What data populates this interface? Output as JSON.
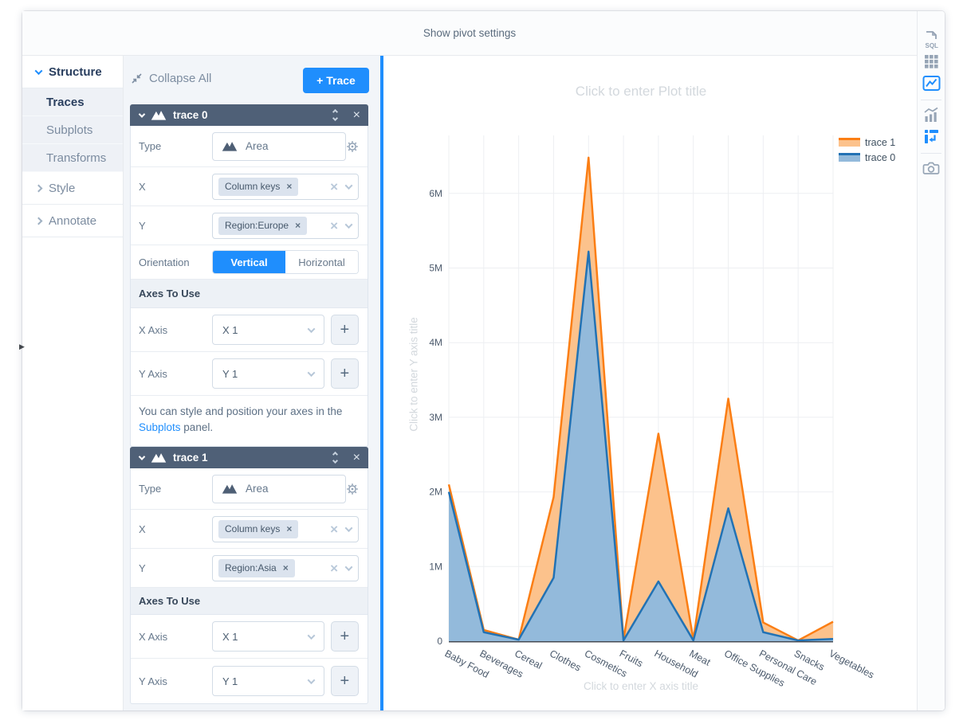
{
  "top_bar": {
    "label": "Show pivot settings"
  },
  "sidebar": {
    "structure_label": "Structure",
    "items": [
      {
        "label": "Traces",
        "active": true
      },
      {
        "label": "Subplots",
        "active": false
      },
      {
        "label": "Transforms",
        "active": false
      }
    ],
    "style_label": "Style",
    "annotate_label": "Annotate"
  },
  "editor": {
    "collapse_all": "Collapse All",
    "add_trace": "+ Trace",
    "traces": [
      {
        "title": "trace 0",
        "type_label": "Type",
        "type_value": "Area",
        "x_label": "X",
        "x_chip": "Column keys",
        "y_label": "Y",
        "y_chip": "Region:Europe",
        "orientation_label": "Orientation",
        "orientation_options": [
          "Vertical",
          "Horizontal"
        ],
        "orientation_selected": "Vertical",
        "axes_header": "Axes To Use",
        "x_axis_label": "X Axis",
        "x_axis_value": "X 1",
        "y_axis_label": "Y Axis",
        "y_axis_value": "Y 1",
        "info_before": "You can style and position your axes in the ",
        "info_link": "Subplots",
        "info_after": " panel."
      },
      {
        "title": "trace 1",
        "type_label": "Type",
        "type_value": "Area",
        "x_label": "X",
        "x_chip": "Column keys",
        "y_label": "Y",
        "y_chip": "Region:Asia",
        "axes_header": "Axes To Use",
        "x_axis_label": "X Axis",
        "x_axis_value": "X 1",
        "y_axis_label": "Y Axis",
        "y_axis_value": "Y 1"
      }
    ]
  },
  "toolbar": {
    "icons": [
      {
        "name": "sql-editor",
        "active": false
      },
      {
        "name": "table-grid",
        "active": false
      },
      {
        "name": "chart-image",
        "active": true
      },
      {
        "name": "combo-chart",
        "active": false
      },
      {
        "name": "pivot-table",
        "active": true
      },
      {
        "name": "camera-export",
        "active": false
      }
    ]
  },
  "colors": {
    "accent_blue": "#1f8efd",
    "fold_header": "#4f6077",
    "trace1_line": "#fb7e14",
    "trace1_fill": "#fcc28c",
    "trace0_line": "#2272b4",
    "trace0_fill": "#93badb"
  },
  "chart_data": {
    "type": "area",
    "title_placeholder": "Click to enter Plot title",
    "x_title_placeholder": "Click to enter X axis title",
    "y_title_placeholder": "Click to enter Y axis title",
    "unit": "millions",
    "categories": [
      "Baby Food",
      "Beverages",
      "Cereal",
      "Clothes",
      "Cosmetics",
      "Fruits",
      "Household",
      "Meat",
      "Office Supplies",
      "Personal Care",
      "Snacks",
      "Vegetables"
    ],
    "series": [
      {
        "name": "trace 1",
        "source_field": "Region:Asia",
        "line_color": "#fb7e14",
        "fill_color": "#fcc28c",
        "values_m": [
          2.1,
          0.15,
          0.02,
          1.93,
          6.48,
          0.02,
          2.78,
          0.02,
          3.25,
          0.25,
          0.01,
          0.26
        ]
      },
      {
        "name": "trace 0",
        "source_field": "Region:Europe",
        "line_color": "#2272b4",
        "fill_color": "#93badb",
        "values_m": [
          2.0,
          0.12,
          0.02,
          0.85,
          5.22,
          0.01,
          0.8,
          0.01,
          1.78,
          0.12,
          0.01,
          0.03
        ]
      }
    ],
    "y_ticks": [
      "0",
      "1M",
      "2M",
      "3M",
      "4M",
      "5M",
      "6M"
    ],
    "ylim_m": [
      0,
      6.8
    ],
    "grid": true,
    "legend_position": "top-right",
    "legend": [
      "trace 1",
      "trace 0"
    ]
  }
}
